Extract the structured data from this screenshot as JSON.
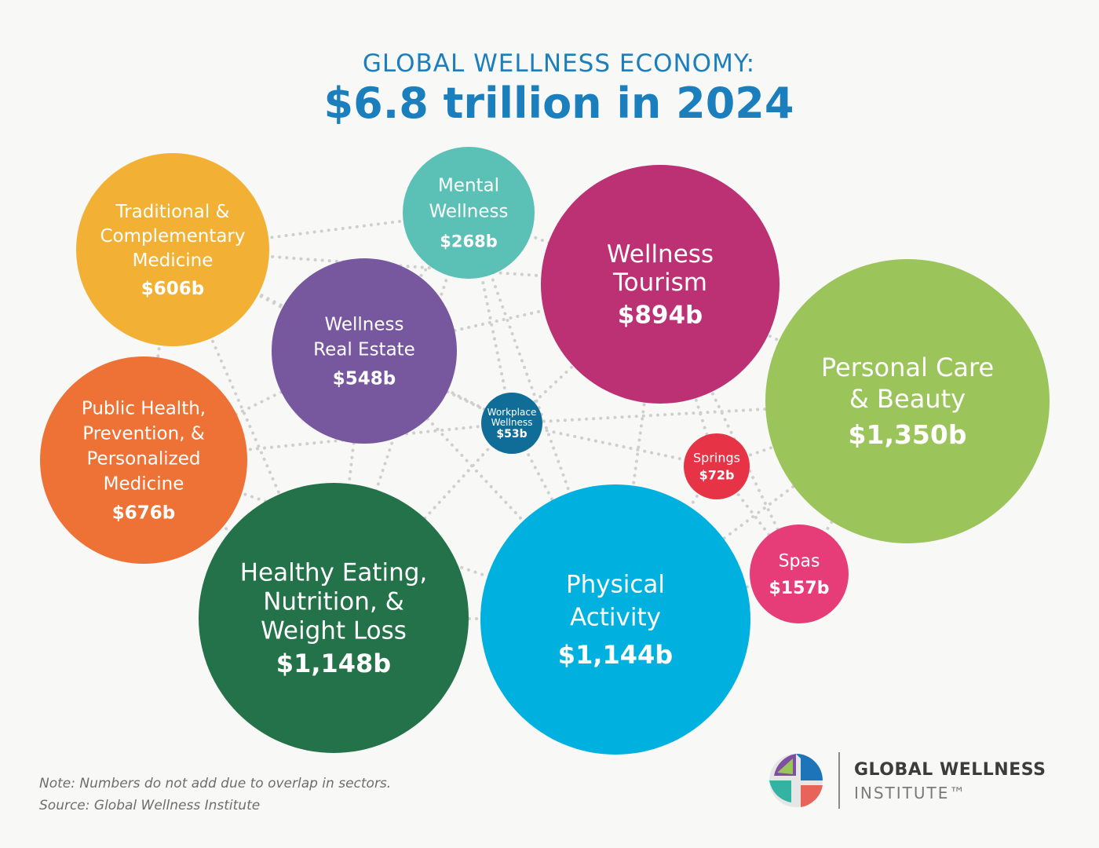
{
  "title": {
    "line1": "GLOBAL WELLNESS ECONOMY:",
    "line2": "$6.8 trillion in 2024"
  },
  "chart_data": {
    "type": "bubble",
    "unit": "billion USD",
    "series": [
      {
        "name": "Traditional & Complementary Medicine",
        "label_lines": [
          "Traditional &",
          "Complementary",
          "Medicine"
        ],
        "value_label": "$606b",
        "value": 606,
        "color": "#f2b134"
      },
      {
        "name": "Mental Wellness",
        "label_lines": [
          "Mental",
          "Wellness"
        ],
        "value_label": "$268b",
        "value": 268,
        "color": "#5bc0b5"
      },
      {
        "name": "Wellness Tourism",
        "label_lines": [
          "Wellness",
          "Tourism"
        ],
        "value_label": "$894b",
        "value": 894,
        "color": "#bc3074"
      },
      {
        "name": "Personal Care & Beauty",
        "label_lines": [
          "Personal Care",
          "& Beauty"
        ],
        "value_label": "$1,350b",
        "value": 1350,
        "color": "#9bc45a"
      },
      {
        "name": "Wellness Real Estate",
        "label_lines": [
          "Wellness",
          "Real Estate"
        ],
        "value_label": "$548b",
        "value": 548,
        "color": "#77589f"
      },
      {
        "name": "Workplace Wellness",
        "label_lines": [
          "Workplace",
          "Wellness"
        ],
        "value_label": "$53b",
        "value": 53,
        "color": "#0f6d97"
      },
      {
        "name": "Springs",
        "label_lines": [
          "Springs"
        ],
        "value_label": "$72b",
        "value": 72,
        "color": "#e63346"
      },
      {
        "name": "Public Health, Prevention, & Personalized Medicine",
        "label_lines": [
          "Public Health,",
          "Prevention, &",
          "Personalized",
          "Medicine"
        ],
        "value_label": "$676b",
        "value": 676,
        "color": "#ee7236"
      },
      {
        "name": "Healthy Eating, Nutrition, & Weight Loss",
        "label_lines": [
          "Healthy Eating,",
          "Nutrition, &",
          "Weight Loss"
        ],
        "value_label": "$1,148b",
        "value": 1148,
        "color": "#237249"
      },
      {
        "name": "Physical Activity",
        "label_lines": [
          "Physical",
          "Activity"
        ],
        "value_label": "$1,144b",
        "value": 1144,
        "color": "#00b1e0"
      },
      {
        "name": "Spas",
        "label_lines": [
          "Spas"
        ],
        "value_label": "$157b",
        "value": 157,
        "color": "#e63d79"
      }
    ]
  },
  "footer": {
    "note": "Note: Numbers do not add due to overlap in sectors.",
    "source": "Source: Global Wellness Institute"
  },
  "logo": {
    "name": "GLOBAL WELLNESS",
    "sub": "INSTITUTE™"
  },
  "colors": {
    "title": "#1b7fbd",
    "connector": "#cfcfcf"
  }
}
